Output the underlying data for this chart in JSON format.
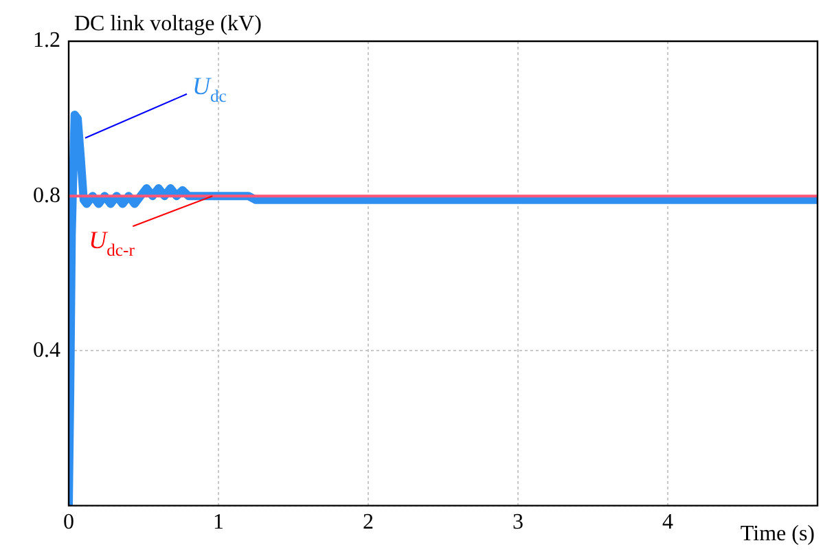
{
  "chart_data": {
    "type": "line",
    "title": "DC link voltage (kV)",
    "xlabel": "Time (s)",
    "xlim": [
      0,
      5
    ],
    "xticks": [
      0,
      1,
      2,
      3,
      4
    ],
    "ylim": [
      0,
      1.2
    ],
    "yticks": [
      {
        "value": 0,
        "label": null
      },
      0.4,
      0.8,
      1.2
    ],
    "grid": true,
    "legend": false,
    "marker": "none",
    "series": [
      {
        "color": "#2f8ff0",
        "x": [
          0,
          0.01,
          0.02,
          0.04,
          0.06,
          0.08,
          0.1,
          0.12,
          0.16,
          0.2,
          0.24,
          0.28,
          0.32,
          0.36,
          0.4,
          0.44,
          0.48,
          0.52,
          0.56,
          0.6,
          0.64,
          0.68,
          0.72,
          0.76,
          0.8,
          0.9,
          1.2,
          1.25,
          5
        ],
        "values": [
          0,
          0.3,
          0.7,
          1.01,
          1.0,
          0.9,
          0.79,
          0.78,
          0.8,
          0.78,
          0.8,
          0.78,
          0.8,
          0.78,
          0.8,
          0.78,
          0.8,
          0.82,
          0.8,
          0.82,
          0.8,
          0.82,
          0.8,
          0.815,
          0.8,
          0.8,
          0.8,
          0.79,
          0.79
        ]
      },
      {
        "color": "#ff5577",
        "x": [
          0,
          5
        ],
        "values": [
          0.8,
          0.8
        ]
      }
    ],
    "annotations": [
      {
        "text": "U$_{dc}$",
        "x": 0.11,
        "y": 0.95
      },
      {
        "text": "U$_{dc-r}$",
        "x": 0.96,
        "y": 0.8
      }
    ]
  }
}
